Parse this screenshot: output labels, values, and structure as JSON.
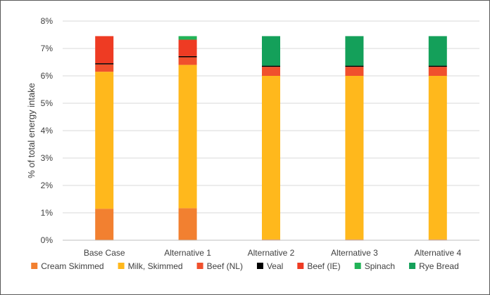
{
  "chart_data": {
    "type": "bar",
    "stacked": true,
    "title": "",
    "xlabel": "",
    "ylabel": "% of total energy intake",
    "ylim": [
      0,
      8
    ],
    "yticks": [
      0,
      1,
      2,
      3,
      4,
      5,
      6,
      7,
      8
    ],
    "ytick_labels": [
      "0%",
      "1%",
      "2%",
      "3%",
      "4%",
      "5%",
      "6%",
      "7%",
      "8%"
    ],
    "grid": true,
    "legend_position": "bottom",
    "categories": [
      "Base Case",
      "Alternative 1",
      "Alternative 2",
      "Alternative 3",
      "Alternative 4"
    ],
    "series": [
      {
        "name": "Cream Skimmed",
        "color": "#F28030",
        "values": [
          1.15,
          1.17,
          0.03,
          0.03,
          0.03
        ]
      },
      {
        "name": "Milk, Skimmed",
        "color": "#FFB81C",
        "values": [
          5.0,
          5.23,
          5.97,
          5.97,
          5.97
        ]
      },
      {
        "name": "Beef (NL)",
        "color": "#F0502D",
        "values": [
          0.27,
          0.28,
          0.33,
          0.33,
          0.33
        ]
      },
      {
        "name": "Veal",
        "color": "#000000",
        "values": [
          0.04,
          0.04,
          0.04,
          0.04,
          0.04
        ]
      },
      {
        "name": "Beef (IE)",
        "color": "#EE3B23",
        "values": [
          0.99,
          0.6,
          0.0,
          0.0,
          0.0
        ]
      },
      {
        "name": "Spinach",
        "color": "#22B357",
        "values": [
          0.0,
          0.13,
          0.0,
          0.0,
          0.0
        ]
      },
      {
        "name": "Rye Bread",
        "color": "#14A05A",
        "values": [
          0.0,
          0.0,
          1.08,
          1.08,
          1.08
        ]
      }
    ]
  }
}
